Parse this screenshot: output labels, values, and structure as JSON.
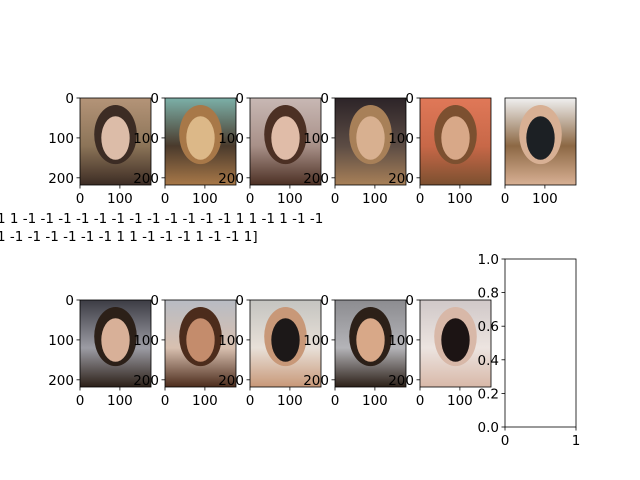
{
  "chart_data": {
    "type": "image-grid",
    "grid": {
      "rows": 2,
      "cols": 6
    },
    "images": [
      {
        "row": 0,
        "col": 0,
        "xticks": [
          "0",
          "100"
        ],
        "yticks": [
          "0",
          "100",
          "200"
        ],
        "palette": [
          "#b49478",
          "#dcbca8",
          "#3c2c24",
          "#8c7458"
        ]
      },
      {
        "row": 0,
        "col": 1,
        "xticks": [
          "0",
          "100"
        ],
        "yticks": [
          "0",
          "100",
          "200"
        ],
        "palette": [
          "#7cb0a8",
          "#dcb888",
          "#a87848",
          "#4a3a2c"
        ]
      },
      {
        "row": 0,
        "col": 2,
        "xticks": [
          "0",
          "100"
        ],
        "yticks": [
          "0",
          "100",
          "200"
        ],
        "palette": [
          "#c8b8b4",
          "#e0bca8",
          "#4c3024",
          "#a89088"
        ]
      },
      {
        "row": 0,
        "col": 3,
        "xticks": [
          "0",
          "100"
        ],
        "yticks": [
          "0",
          "100",
          "200"
        ],
        "palette": [
          "#2c2428",
          "#d8b090",
          "#a88058",
          "#5c4c44"
        ]
      },
      {
        "row": 0,
        "col": 4,
        "xticks": [
          "0",
          "100"
        ],
        "yticks": [
          "0",
          "100",
          "200"
        ],
        "palette": [
          "#e07858",
          "#d8a888",
          "#7c5030",
          "#c86848"
        ]
      },
      {
        "row": 0,
        "col": 5,
        "xticks": [
          "0",
          "100"
        ],
        "yticks": [],
        "palette": [
          "#f0f0f0",
          "#1c2024",
          "#d8b094",
          "#8c6844"
        ]
      },
      {
        "row": 1,
        "col": 0,
        "xticks": [
          "0",
          "100"
        ],
        "yticks": [
          "0",
          "100",
          "200"
        ],
        "palette": [
          "#3c3c44",
          "#d8b098",
          "#2c2018",
          "#9c9ca4"
        ]
      },
      {
        "row": 1,
        "col": 1,
        "xticks": [
          "0",
          "100"
        ],
        "yticks": [
          "0",
          "100",
          "200"
        ],
        "palette": [
          "#b8bcc4",
          "#c48c6c",
          "#4c2c1c",
          "#d8c0b0"
        ]
      },
      {
        "row": 1,
        "col": 2,
        "xticks": [
          "0",
          "100"
        ],
        "yticks": [
          "0",
          "100",
          "200"
        ],
        "palette": [
          "#c4c4c0",
          "#1c1818",
          "#c89878",
          "#e8e0d8"
        ]
      },
      {
        "row": 1,
        "col": 3,
        "xticks": [
          "0",
          "100"
        ],
        "yticks": [
          "0",
          "100",
          "200"
        ],
        "palette": [
          "#8c8c90",
          "#d8a888",
          "#2c2018",
          "#b4b4b8"
        ]
      },
      {
        "row": 1,
        "col": 4,
        "xticks": [
          "0",
          "100"
        ],
        "yticks": [
          "0",
          "100",
          "200"
        ],
        "palette": [
          "#d0c8c8",
          "#1c1414",
          "#d8b8a8",
          "#ece4e0"
        ]
      }
    ],
    "empty_axes": {
      "xticks": [
        "0",
        "1"
      ],
      "yticks": [
        "0.0",
        "0.2",
        "0.4",
        "0.6",
        "0.8",
        "1.0"
      ],
      "xlim": [
        0,
        1
      ],
      "ylim": [
        0,
        1
      ]
    },
    "label_text_lines": [
      "1  1 -1 -1 -1 -1 -1 -1 -1 -1 -1 -1 -1 -1  1  1 -1  1 -1 -1",
      "1 -1 -1 -1 -1 -1 -1  1  1 -1 -1 -1  1 -1 -1  1]"
    ]
  }
}
